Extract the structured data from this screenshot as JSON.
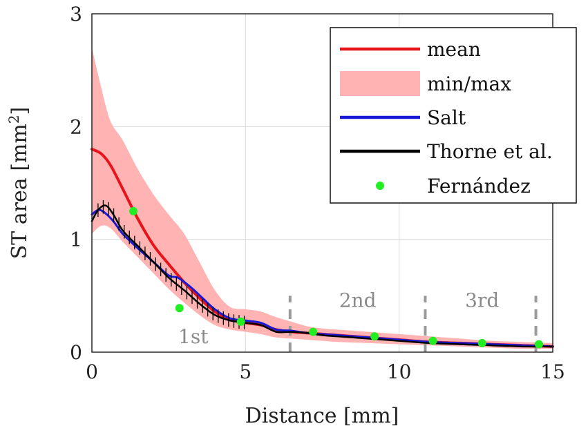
{
  "chart_data": {
    "type": "line",
    "xlabel": "Distance [mm]",
    "ylabel_prefix": "ST area [mm",
    "ylabel_sup": "2",
    "ylabel_suffix": "]",
    "xlim": [
      0,
      15
    ],
    "ylim": [
      0,
      3
    ],
    "xticks": [
      0,
      5,
      10,
      15
    ],
    "yticks": [
      0,
      1,
      2,
      3
    ],
    "xtick_labels": [
      "0",
      "5",
      "10",
      "15"
    ],
    "ytick_labels": [
      "0",
      "1",
      "2",
      "3"
    ],
    "grid": true,
    "legend_position": "top-right",
    "legend": [
      {
        "label": "mean",
        "kind": "line",
        "color": "#e8141c"
      },
      {
        "label": "min/max",
        "kind": "band",
        "color": "#ffb3b3"
      },
      {
        "label": "Salt",
        "kind": "line",
        "color": "#1a1ad6"
      },
      {
        "label": "Thorne et al.",
        "kind": "line",
        "color": "#000000"
      },
      {
        "label": "Fernández",
        "kind": "marker",
        "color": "#22ee22"
      }
    ],
    "series": [
      {
        "name": "mean",
        "color": "#e8141c",
        "x": [
          0,
          0.3,
          0.6,
          1.0,
          1.5,
          2.0,
          2.5,
          3.0,
          3.5,
          4.0,
          4.5,
          5.0,
          5.5,
          6.0,
          6.5,
          7.0,
          7.5,
          8.0,
          9.0,
          10.0,
          11.0,
          12.0,
          13.0,
          14.0,
          15.0
        ],
        "y": [
          1.8,
          1.76,
          1.66,
          1.45,
          1.18,
          0.95,
          0.78,
          0.62,
          0.48,
          0.36,
          0.29,
          0.26,
          0.24,
          0.2,
          0.18,
          0.17,
          0.16,
          0.15,
          0.13,
          0.11,
          0.09,
          0.08,
          0.07,
          0.06,
          0.05
        ]
      },
      {
        "name": "Salt",
        "color": "#1a1ad6",
        "x": [
          0,
          0.2,
          0.4,
          0.7,
          1.0,
          1.5,
          2.0,
          2.5,
          2.8,
          3.2,
          3.6,
          4.0,
          4.5,
          5.0,
          5.5,
          6.0,
          6.5,
          7.0,
          8.0,
          9.0,
          10.0,
          11.0,
          12.0,
          13.0,
          14.0,
          15.0
        ],
        "y": [
          1.22,
          1.26,
          1.24,
          1.16,
          1.05,
          0.92,
          0.8,
          0.68,
          0.66,
          0.58,
          0.48,
          0.38,
          0.3,
          0.28,
          0.26,
          0.2,
          0.19,
          0.17,
          0.15,
          0.13,
          0.11,
          0.09,
          0.08,
          0.07,
          0.06,
          0.05
        ]
      },
      {
        "name": "Thorne et al.",
        "color": "#000000",
        "x": [
          0,
          0.2,
          0.45,
          0.7,
          1.0,
          1.5,
          2.0,
          2.5,
          3.0,
          3.5,
          4.0,
          4.5,
          5.0,
          5.5,
          6.0,
          6.5,
          7.0,
          7.5,
          8.0,
          9.0,
          10.0,
          11.0,
          12.0,
          13.0,
          14.0,
          15.0
        ],
        "y": [
          1.16,
          1.26,
          1.3,
          1.22,
          1.08,
          0.94,
          0.8,
          0.66,
          0.55,
          0.43,
          0.33,
          0.28,
          0.26,
          0.24,
          0.18,
          0.18,
          0.17,
          0.15,
          0.14,
          0.12,
          0.1,
          0.08,
          0.07,
          0.06,
          0.05,
          0.05
        ]
      }
    ],
    "band": {
      "name": "min/max",
      "color": "#ffb3b3",
      "x": [
        0,
        0.3,
        0.6,
        1.0,
        1.5,
        2.0,
        2.5,
        3.0,
        3.5,
        4.0,
        4.5,
        5.0,
        5.5,
        6.0,
        6.5,
        7.0,
        7.5,
        8.0,
        9.0,
        10.0,
        11.0,
        12.0,
        13.0,
        14.0,
        15.0
      ],
      "upper": [
        2.7,
        2.35,
        2.05,
        1.88,
        1.62,
        1.4,
        1.22,
        1.05,
        0.8,
        0.55,
        0.4,
        0.38,
        0.36,
        0.31,
        0.27,
        0.23,
        0.21,
        0.2,
        0.18,
        0.16,
        0.14,
        0.12,
        0.1,
        0.09,
        0.08
      ],
      "lower": [
        1.05,
        1.12,
        1.1,
        0.98,
        0.84,
        0.7,
        0.56,
        0.44,
        0.33,
        0.24,
        0.2,
        0.18,
        0.16,
        0.13,
        0.12,
        0.11,
        0.1,
        0.09,
        0.08,
        0.07,
        0.06,
        0.05,
        0.04,
        0.03,
        0.03
      ]
    },
    "thorne_errorbar_range": [
      0.2,
      5.0
    ],
    "thorne_errorbar_halfheight": 0.06,
    "points": {
      "name": "Fernández",
      "color": "#22ee22",
      "x": [
        1.35,
        2.85,
        4.85,
        7.2,
        9.2,
        11.1,
        12.7,
        14.55
      ],
      "y": [
        1.25,
        0.39,
        0.27,
        0.18,
        0.14,
        0.1,
        0.08,
        0.07
      ]
    },
    "region_markers": {
      "color": "#9a9a9a",
      "x": [
        6.45,
        10.85,
        14.45
      ],
      "ymax": 0.5
    },
    "annotations": [
      {
        "text": "1st",
        "x": 3.3,
        "y": 0.08
      },
      {
        "text": "2nd",
        "x": 8.65,
        "y": 0.4
      },
      {
        "text": "3rd",
        "x": 12.7,
        "y": 0.4
      }
    ]
  }
}
